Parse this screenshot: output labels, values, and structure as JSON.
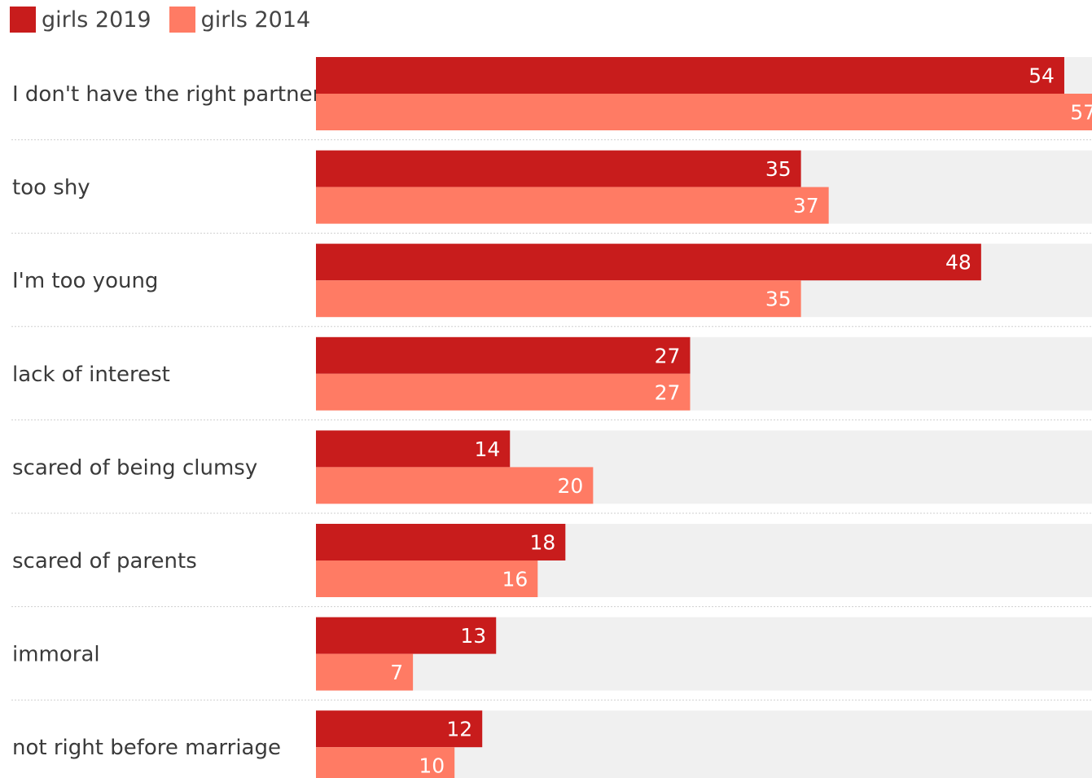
{
  "chart_data": {
    "type": "bar",
    "orientation": "horizontal",
    "categories": [
      "I don't have the right partner",
      "too shy",
      "I'm too young",
      "lack of interest",
      "scared of being clumsy",
      "scared of parents",
      "immoral",
      "not right before marriage"
    ],
    "series": [
      {
        "name": "girls 2019",
        "color": "#c81c1c",
        "values": [
          54,
          35,
          48,
          27,
          14,
          18,
          13,
          12
        ]
      },
      {
        "name": "girls 2014",
        "color": "#ff7b64",
        "values": [
          57,
          37,
          35,
          27,
          20,
          16,
          7,
          10
        ]
      }
    ],
    "xlim": [
      0,
      56
    ],
    "background_bar_color": "#f0f0f0",
    "grid": false,
    "legend_position": "top-left"
  }
}
